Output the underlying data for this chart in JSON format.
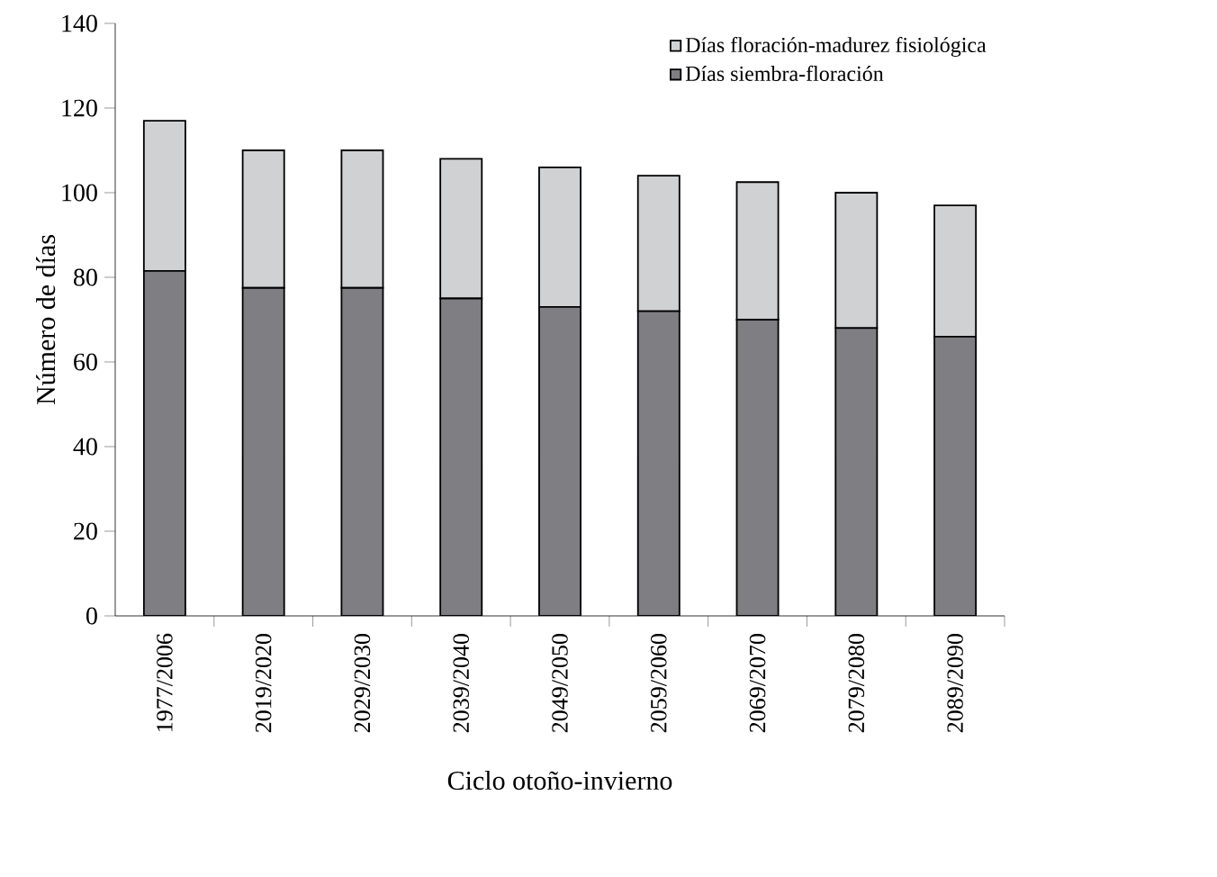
{
  "chart_data": {
    "type": "bar",
    "stacked": true,
    "xlabel": "Ciclo otoño-invierno",
    "ylabel": "Número de días",
    "categories": [
      "1977/2006",
      "2019/2020",
      "2029/2030",
      "2039/2040",
      "2049/2050",
      "2059/2060",
      "2069/2070",
      "2079/2080",
      "2089/2090"
    ],
    "series": [
      {
        "name": "Días siembra-floración",
        "color": "#7e7e83",
        "values": [
          81.5,
          77.5,
          77.5,
          75,
          73,
          72,
          70,
          68,
          66
        ]
      },
      {
        "name": "Días floración-madurez fisiológica",
        "color": "#d0d1d3",
        "values": [
          35.5,
          32.5,
          32.5,
          33,
          33,
          32,
          32.5,
          32,
          31
        ]
      }
    ],
    "ylim": [
      0,
      140
    ],
    "yticks": [
      0,
      20,
      40,
      60,
      80,
      100,
      120,
      140
    ],
    "grid": false,
    "legend": "top right"
  }
}
